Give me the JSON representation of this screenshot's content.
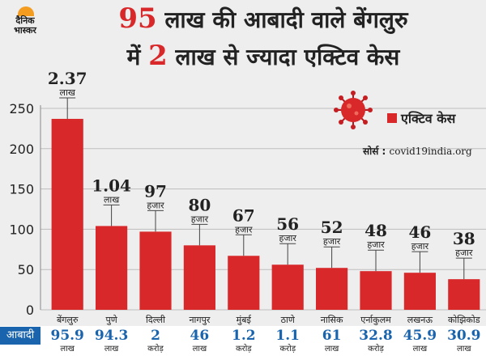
{
  "brand": {
    "logo_line1": "दैनिक",
    "logo_line2": "भास्कर"
  },
  "headline": {
    "line1_num": "95",
    "line1_text": " लाख की आबादी वाले बेंगलुरु",
    "line2_pre": "में ",
    "line2_num": "2",
    "line2_text": " लाख से ज्यादा एक्टिव केस"
  },
  "legend": {
    "label": "एक्टिव केस"
  },
  "source": {
    "label": "सोर्स : ",
    "value": "covid19india.org"
  },
  "colors": {
    "bar": "#d8282a",
    "accent_blue": "#1a64ad",
    "title_red": "#d8282a"
  },
  "icons": {
    "virus": "coronavirus-icon"
  },
  "chart_data": {
    "type": "bar",
    "categories": [
      "बेंगलुरु",
      "पुणे",
      "दिल्ली",
      "नागपुर",
      "मुंबई",
      "ठाणे",
      "नासिक",
      "एर्नाकुलम",
      "लखनऊ",
      "कोझिकोड"
    ],
    "values": [
      237,
      104,
      97,
      80,
      67,
      56,
      52,
      48,
      46,
      38
    ],
    "value_labels": [
      {
        "num": "2.37",
        "unit": "लाख"
      },
      {
        "num": "1.04",
        "unit": "लाख"
      },
      {
        "num": "97",
        "unit": "हजार"
      },
      {
        "num": "80",
        "unit": "हजार"
      },
      {
        "num": "67",
        "unit": "हजार"
      },
      {
        "num": "56",
        "unit": "हजार"
      },
      {
        "num": "52",
        "unit": "हजार"
      },
      {
        "num": "48",
        "unit": "हजार"
      },
      {
        "num": "46",
        "unit": "हजार"
      },
      {
        "num": "38",
        "unit": "हजार"
      }
    ],
    "y_ticks": [
      0,
      50,
      100,
      150,
      200,
      250
    ],
    "ylim": [
      0,
      260
    ],
    "grid": true,
    "legend_position": "top-right"
  },
  "population": {
    "label": "आबादी",
    "items": [
      {
        "value": "95.9",
        "unit": "लाख"
      },
      {
        "value": "94.3",
        "unit": "लाख"
      },
      {
        "value": "2",
        "unit": "करोड़"
      },
      {
        "value": "46",
        "unit": "लाख"
      },
      {
        "value": "1.2",
        "unit": "करोड़"
      },
      {
        "value": "1.1",
        "unit": "करोड़"
      },
      {
        "value": "61",
        "unit": "लाख"
      },
      {
        "value": "32.8",
        "unit": "करोड़"
      },
      {
        "value": "45.9",
        "unit": "लाख"
      },
      {
        "value": "30.9",
        "unit": "लाख"
      }
    ]
  }
}
